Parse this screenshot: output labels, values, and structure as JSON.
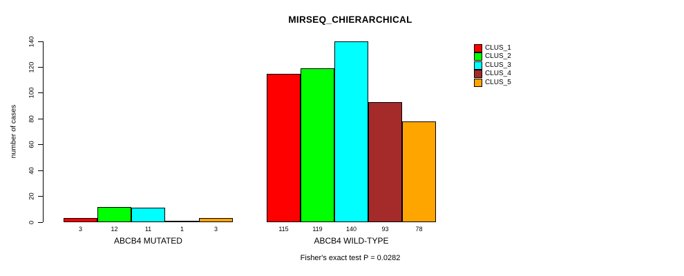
{
  "chart_data": {
    "type": "bar",
    "title": "MIRSEQ_CHIERARCHICAL",
    "ylabel": "number of cases",
    "xlabel": "",
    "ylim": [
      0,
      140
    ],
    "yticks": [
      0,
      20,
      40,
      60,
      80,
      100,
      120,
      140
    ],
    "grid": false,
    "legend_position": "right",
    "categories": [
      "ABCB4 MUTATED",
      "ABCB4 WILD-TYPE"
    ],
    "series": [
      {
        "name": "CLUS_1",
        "color": "#FF0000",
        "values": [
          3,
          115
        ]
      },
      {
        "name": "CLUS_2",
        "color": "#00FF00",
        "values": [
          12,
          119
        ]
      },
      {
        "name": "CLUS_3",
        "color": "#00FFFF",
        "values": [
          11,
          140
        ]
      },
      {
        "name": "CLUS_4",
        "color": "#A52A2A",
        "values": [
          1,
          93
        ]
      },
      {
        "name": "CLUS_5",
        "color": "#FFA500",
        "values": [
          3,
          78
        ]
      }
    ],
    "bar_value_labels": [
      [
        "3",
        "12",
        "11",
        "1",
        "3"
      ],
      [
        "115",
        "119",
        "140",
        "93",
        "78"
      ]
    ],
    "annotation": "Fisher's exact test P = 0.0282",
    "axis_color": "#000000",
    "bar_border_color": "#000000"
  }
}
